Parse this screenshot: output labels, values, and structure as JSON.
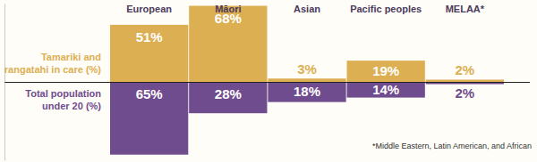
{
  "chart_data": {
    "type": "bar",
    "categories": [
      "European",
      "Māori",
      "Asian",
      "Pacific peoples",
      "MELAA*"
    ],
    "series": [
      {
        "name": "Tamariki and rangatahi in care (%)",
        "color": "#dcaf52",
        "values": [
          51,
          68,
          3,
          19,
          2
        ],
        "value_labels": [
          "51%",
          "68%",
          "3%",
          "19%",
          "2%"
        ]
      },
      {
        "name": "Total population under 20 (%)",
        "color": "#6f4c8d",
        "values": [
          65,
          28,
          18,
          14,
          2
        ],
        "value_labels": [
          "65%",
          "28%",
          "18%",
          "14%",
          "2%"
        ]
      }
    ],
    "ylim": [
      0,
      70
    ],
    "yticks": [
      0
    ],
    "tick_labels": false,
    "grid": false,
    "data_labels": true,
    "annotations": [
      "*Middle Eastern, Latin American, and African"
    ]
  }
}
